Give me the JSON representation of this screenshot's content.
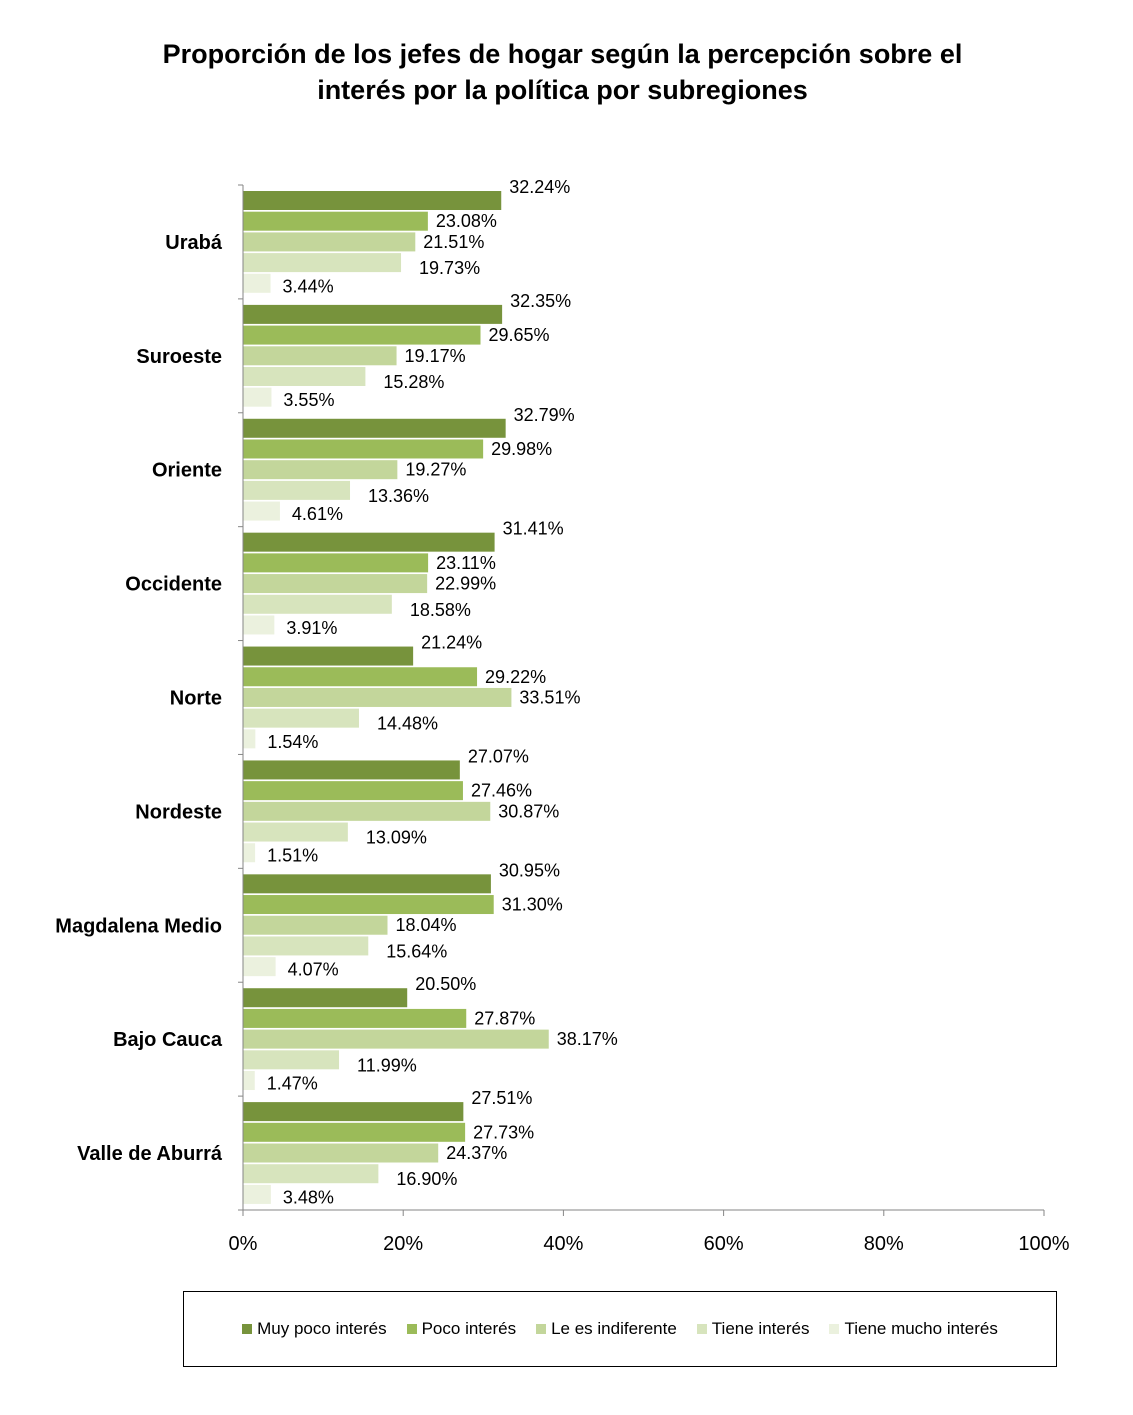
{
  "chart_data": {
    "type": "bar",
    "orientation": "horizontal",
    "title_lines": [
      "Proporción de los jefes de hogar  según la percepción sobre el",
      "interés por la política por subregiones"
    ],
    "categories": [
      "Urabá",
      "Suroeste",
      "Oriente",
      "Occidente",
      "Norte",
      "Nordeste",
      "Magdalena Medio",
      "Bajo Cauca",
      "Valle de Aburrá"
    ],
    "xlim": [
      0,
      100
    ],
    "x_ticks": [
      "0%",
      "20%",
      "40%",
      "60%",
      "80%",
      "100%"
    ],
    "grid": false,
    "legend_position": "bottom",
    "series": [
      {
        "name": "Muy poco interés",
        "color": "#77933c",
        "values": [
          32.24,
          32.35,
          32.79,
          31.41,
          21.24,
          27.07,
          30.95,
          20.5,
          27.51
        ],
        "labels": [
          "32.24%",
          "32.35%",
          "32.79%",
          "31.41%",
          "21.24%",
          "27.07%",
          "30.95%",
          "20.50%",
          "27.51%"
        ]
      },
      {
        "name": "Poco interés",
        "color": "#9bbb59",
        "values": [
          23.08,
          29.65,
          29.98,
          23.11,
          29.22,
          27.46,
          31.3,
          27.87,
          27.73
        ],
        "labels": [
          "23.08%",
          "29.65%",
          "29.98%",
          "23.11%",
          "29.22%",
          "27.46%",
          "31.30%",
          "27.87%",
          "27.73%"
        ]
      },
      {
        "name": "Le es indiferente",
        "color": "#c3d69b",
        "values": [
          21.51,
          19.17,
          19.27,
          22.99,
          33.51,
          30.87,
          18.04,
          38.17,
          24.37
        ],
        "labels": [
          "21.51%",
          "19.17%",
          "19.27%",
          "22.99%",
          "33.51%",
          "30.87%",
          "18.04%",
          "38.17%",
          "24.37%"
        ]
      },
      {
        "name": "Tiene interés",
        "color": "#d7e4bd",
        "values": [
          19.73,
          15.28,
          13.36,
          18.58,
          14.48,
          13.09,
          15.64,
          11.99,
          16.9
        ],
        "labels": [
          "19.73%",
          "15.28%",
          "13.36%",
          "18.58%",
          "14.48%",
          "13.09%",
          "15.64%",
          "11.99%",
          "16.90%"
        ]
      },
      {
        "name": "Tiene mucho interés",
        "color": "#ebf1de",
        "values": [
          3.44,
          3.55,
          4.61,
          3.91,
          1.54,
          1.51,
          4.07,
          1.47,
          3.48
        ],
        "labels": [
          "3.44%",
          "3.55%",
          "4.61%",
          "3.91%",
          "1.54%",
          "1.51%",
          "4.07%",
          "1.47%",
          "3.48%"
        ]
      }
    ]
  }
}
